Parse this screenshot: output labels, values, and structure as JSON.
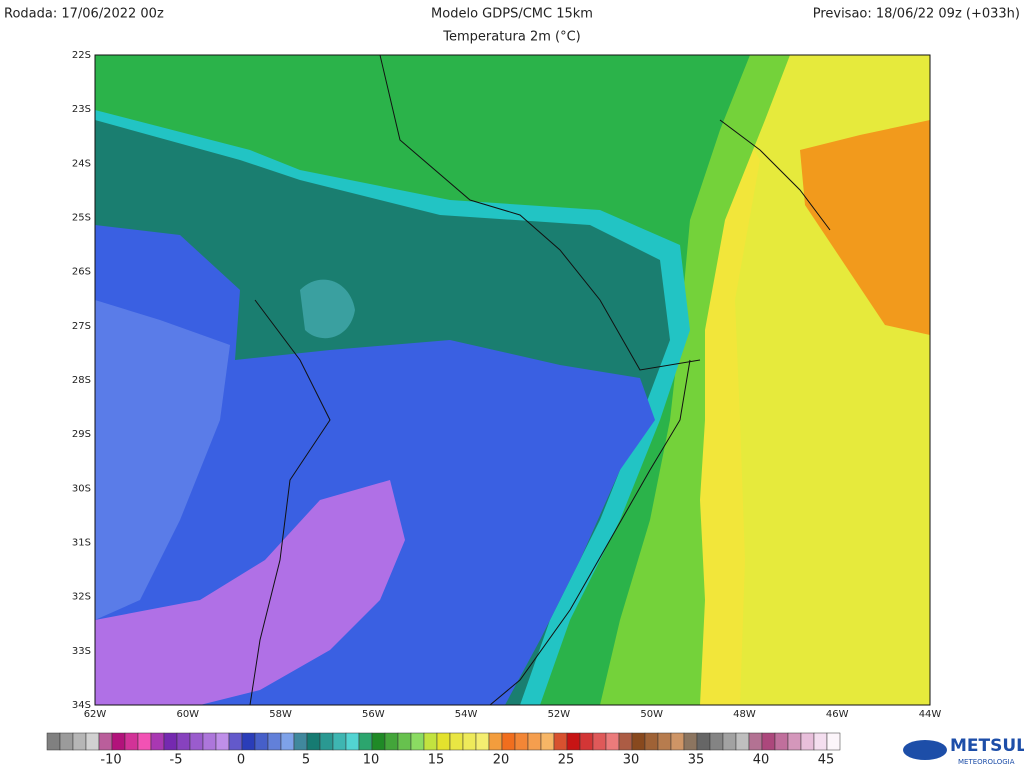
{
  "header": {
    "run": "Rodada: 17/06/2022 00z",
    "model": "Modelo GDPS/CMC 15km",
    "variable": "Temperatura 2m (°C)",
    "forecast": "Previsao: 18/06/22 09z (+033h)"
  },
  "map": {
    "lat_labels": [
      "22S",
      "23S",
      "24S",
      "25S",
      "26S",
      "27S",
      "28S",
      "29S",
      "30S",
      "31S",
      "32S",
      "33S",
      "34S"
    ],
    "lon_labels": [
      "62W",
      "60W",
      "58W",
      "56W",
      "54W",
      "52W",
      "50W",
      "48W",
      "46W",
      "44W"
    ]
  },
  "colorbar": {
    "ticks": [
      -10,
      -5,
      0,
      5,
      10,
      15,
      20,
      25,
      30,
      35,
      40,
      45
    ]
  },
  "logo": {
    "name": "METSUL",
    "tagline": "METEOROLOGIA"
  }
}
